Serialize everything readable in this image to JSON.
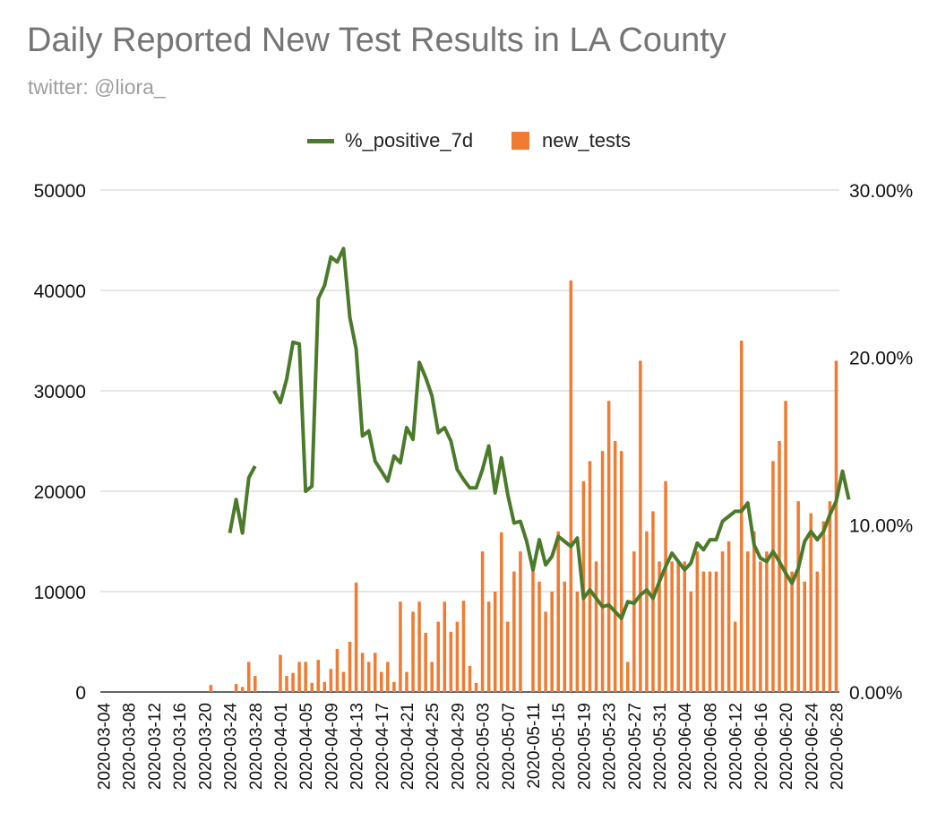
{
  "chart_data": {
    "type": "bar",
    "title": "Daily Reported New Test Results in LA County",
    "subtitle": "twitter: @liora_",
    "colors": {
      "bars": "#f07b32",
      "line": "#4a7a2a",
      "grid": "#cccccc",
      "title": "#757575"
    },
    "legend": [
      {
        "name": "%_positive_7d",
        "kind": "line",
        "color": "#4a7a2a"
      },
      {
        "name": "new_tests",
        "kind": "bar",
        "color": "#f07b32"
      }
    ],
    "legend_position": "top",
    "y_left": {
      "min": 0,
      "max": 50000,
      "ticks": [
        "0",
        "10000",
        "20000",
        "30000",
        "40000",
        "50000"
      ]
    },
    "y_right": {
      "min": 0,
      "max": 30,
      "ticks": [
        "0.00%",
        "10.00%",
        "20.00%",
        "30.00%"
      ]
    },
    "x_tick_labels": [
      "2020-03-04",
      "2020-03-08",
      "2020-03-12",
      "2020-03-16",
      "2020-03-20",
      "2020-03-24",
      "2020-03-28",
      "2020-04-01",
      "2020-04-05",
      "2020-04-09",
      "2020-04-13",
      "2020-04-17",
      "2020-04-21",
      "2020-04-25",
      "2020-04-29",
      "2020-05-03",
      "2020-05-07",
      "2020-05-11",
      "2020-05-15",
      "2020-05-19",
      "2020-05-23",
      "2020-05-27",
      "2020-05-31",
      "2020-06-04",
      "2020-06-08",
      "2020-06-12",
      "2020-06-16",
      "2020-06-20",
      "2020-06-24",
      "2020-06-28"
    ],
    "start_date": "2020-03-04",
    "series": [
      {
        "name": "new_tests",
        "type": "bar",
        "axis": "left",
        "values": [
          0,
          0,
          0,
          0,
          0,
          0,
          0,
          0,
          0,
          0,
          0,
          0,
          0,
          0,
          0,
          0,
          0,
          700,
          0,
          0,
          0,
          800,
          500,
          3000,
          1600,
          0,
          0,
          0,
          3700,
          1600,
          1900,
          3000,
          3000,
          900,
          3200,
          1000,
          2300,
          4300,
          2000,
          5000,
          10900,
          3900,
          3000,
          3900,
          2000,
          3000,
          1000,
          9000,
          2000,
          8000,
          9000,
          5900,
          3000,
          7000,
          9000,
          6000,
          7000,
          9100,
          2600,
          900,
          14000,
          9000,
          10000,
          15900,
          7000,
          12000,
          14000,
          0,
          12800,
          11000,
          8000,
          10000,
          16000,
          11000,
          41000,
          10000,
          21000,
          23000,
          13000,
          24000,
          29000,
          25000,
          24000,
          3000,
          14000,
          33000,
          16000,
          18000,
          13000,
          21000,
          13000,
          13000,
          13000,
          10000,
          14000,
          12000,
          12000,
          12000,
          14000,
          15000,
          7000,
          35000,
          14000,
          16000,
          13000,
          14000,
          23000,
          25000,
          29000,
          12000,
          19000,
          11000,
          17800,
          12000,
          17000,
          19000,
          33000
        ]
      },
      {
        "name": "%_positive_7d",
        "type": "line",
        "axis": "right",
        "values": [
          null,
          null,
          null,
          null,
          null,
          null,
          null,
          null,
          null,
          null,
          null,
          null,
          null,
          null,
          null,
          null,
          null,
          null,
          null,
          null,
          9.5,
          11.5,
          9.5,
          12.8,
          13.5,
          null,
          null,
          18,
          17.3,
          18.7,
          20.9,
          20.8,
          12,
          12.3,
          23.5,
          24.3,
          26,
          25.7,
          26.5,
          22.4,
          20.5,
          15.3,
          15.6,
          13.8,
          13.2,
          12.6,
          14.1,
          13.7,
          15.8,
          15.1,
          19.7,
          18.8,
          17.7,
          15.5,
          15.8,
          15,
          13.3,
          12.7,
          12.2,
          12.2,
          13.3,
          14.7,
          11.9,
          14,
          11.8,
          10.1,
          10.2,
          9,
          7.3,
          9.1,
          7.6,
          8.1,
          9.3,
          9,
          8.7,
          9.2,
          5.6,
          6.1,
          5.6,
          5.1,
          5.2,
          4.8,
          4.4,
          5.4,
          5.3,
          5.8,
          6.1,
          5.6,
          6.6,
          7.5,
          8.3,
          7.8,
          7.3,
          7.7,
          8.9,
          8.5,
          9.1,
          9.1,
          10.2,
          10.5,
          10.8,
          10.8,
          11.3,
          8.8,
          8,
          7.8,
          8.4,
          7.8,
          7.1,
          6.5,
          7.4,
          9,
          9.6,
          9.1,
          9.6,
          10.6,
          11.4,
          13.2,
          11.5
        ]
      }
    ]
  }
}
